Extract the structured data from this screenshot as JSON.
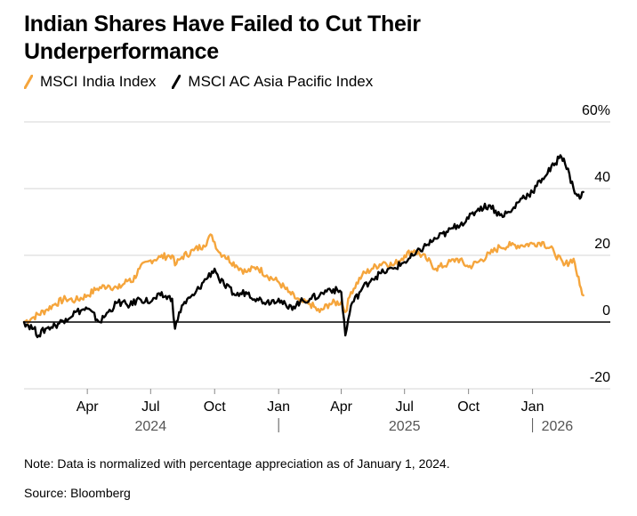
{
  "title": "Indian Shares Have Failed to Cut Their Underperformance",
  "note": "Note: Data is normalized with percentage appreciation as of January 1, 2024.",
  "source": "Source: Bloomberg",
  "colors": {
    "india": "#f5a53c",
    "asia_pacific": "#000000",
    "grid": "#d6d6d6",
    "zero_line": "#000000"
  },
  "legend": [
    {
      "label": "MSCI India Index",
      "color": "#f5a53c"
    },
    {
      "label": "MSCI AC Asia Pacific Index",
      "color": "#000000"
    }
  ],
  "chart_data": {
    "type": "line",
    "title": "Indian Shares Have Failed to Cut Their Underperformance",
    "xlabel": "",
    "ylabel": "",
    "xlim": [
      "2024-01-01",
      "2026-03-18"
    ],
    "ylim": [
      -20,
      60
    ],
    "grid": true,
    "legend_position": "top-left",
    "y_ticks": [
      {
        "value": 60,
        "label": "60%"
      },
      {
        "value": 40,
        "label": "40"
      },
      {
        "value": 20,
        "label": "20"
      },
      {
        "value": 0,
        "label": "0"
      },
      {
        "value": -20,
        "label": "-20"
      }
    ],
    "x_ticks": [
      {
        "date": "2024-04-01",
        "label": "Apr"
      },
      {
        "date": "2024-07-01",
        "label": "Jul"
      },
      {
        "date": "2024-10-01",
        "label": "Oct"
      },
      {
        "date": "2025-01-01",
        "label": "Jan"
      },
      {
        "date": "2025-04-01",
        "label": "Apr"
      },
      {
        "date": "2025-07-01",
        "label": "Jul"
      },
      {
        "date": "2025-10-01",
        "label": "Oct"
      },
      {
        "date": "2026-01-01",
        "label": "Jan"
      }
    ],
    "year_labels": [
      {
        "label": "2024",
        "date": "2024-07-01",
        "separator": false
      },
      {
        "label": "2025",
        "date": "2025-07-01",
        "separator": true,
        "separator_date": "2025-01-01"
      },
      {
        "label": "2026",
        "date": "2026-01-15",
        "separator": true,
        "separator_date": "2026-01-01"
      }
    ],
    "series": [
      {
        "name": "MSCI India Index",
        "color": "#f5a53c",
        "x": [
          "2024-01-01",
          "2024-01-15",
          "2024-02-01",
          "2024-02-15",
          "2024-03-01",
          "2024-03-15",
          "2024-04-01",
          "2024-04-15",
          "2024-05-01",
          "2024-05-15",
          "2024-06-01",
          "2024-06-04",
          "2024-06-15",
          "2024-07-01",
          "2024-07-15",
          "2024-08-01",
          "2024-08-05",
          "2024-08-15",
          "2024-09-01",
          "2024-09-15",
          "2024-09-27",
          "2024-10-07",
          "2024-10-15",
          "2024-11-01",
          "2024-11-15",
          "2024-12-01",
          "2024-12-15",
          "2025-01-01",
          "2025-01-15",
          "2025-02-01",
          "2025-02-15",
          "2025-03-01",
          "2025-03-15",
          "2025-04-01",
          "2025-04-07",
          "2025-04-15",
          "2025-05-01",
          "2025-05-15",
          "2025-06-01",
          "2025-06-15",
          "2025-07-01",
          "2025-07-15",
          "2025-08-01",
          "2025-08-15",
          "2025-09-01",
          "2025-09-15",
          "2025-10-01",
          "2025-10-15",
          "2025-11-01",
          "2025-11-15",
          "2025-12-01",
          "2025-12-15",
          "2026-01-01",
          "2026-01-15",
          "2026-02-01",
          "2026-02-15",
          "2026-03-01",
          "2026-03-10",
          "2026-03-15"
        ],
        "y": [
          0,
          1.5,
          3.5,
          5.5,
          7,
          6.5,
          8,
          10,
          11,
          10,
          13,
          12,
          16,
          18.5,
          19.5,
          20,
          17,
          19.5,
          21.5,
          23,
          26,
          21,
          20,
          17,
          15,
          16.5,
          14,
          12,
          9,
          6,
          5.5,
          3,
          5.5,
          6,
          3,
          9,
          14,
          16,
          18,
          17,
          20,
          21.5,
          19,
          16,
          17.5,
          19,
          16.5,
          18,
          20.5,
          22.5,
          23,
          23,
          23.5,
          24,
          21,
          17,
          19,
          11,
          8
        ]
      },
      {
        "name": "MSCI AC Asia Pacific Index",
        "color": "#000000",
        "x": [
          "2024-01-01",
          "2024-01-15",
          "2024-01-22",
          "2024-02-01",
          "2024-02-15",
          "2024-03-01",
          "2024-03-15",
          "2024-04-01",
          "2024-04-19",
          "2024-05-01",
          "2024-05-15",
          "2024-06-01",
          "2024-06-15",
          "2024-07-01",
          "2024-07-15",
          "2024-08-01",
          "2024-08-05",
          "2024-08-15",
          "2024-09-01",
          "2024-09-15",
          "2024-10-01",
          "2024-10-07",
          "2024-10-15",
          "2024-11-01",
          "2024-11-15",
          "2024-12-01",
          "2024-12-15",
          "2025-01-01",
          "2025-01-15",
          "2025-02-01",
          "2025-02-15",
          "2025-03-01",
          "2025-03-15",
          "2025-04-01",
          "2025-04-07",
          "2025-04-15",
          "2025-05-01",
          "2025-05-15",
          "2025-06-01",
          "2025-06-15",
          "2025-07-01",
          "2025-07-15",
          "2025-08-01",
          "2025-08-15",
          "2025-09-01",
          "2025-09-15",
          "2025-10-01",
          "2025-10-15",
          "2025-11-01",
          "2025-11-15",
          "2025-12-01",
          "2025-12-15",
          "2026-01-01",
          "2026-01-15",
          "2026-02-01",
          "2026-02-10",
          "2026-02-15",
          "2026-03-01",
          "2026-03-10",
          "2026-03-15"
        ],
        "y": [
          0,
          -2,
          -4,
          -2,
          -1,
          1,
          3,
          4,
          0,
          3,
          6,
          5,
          7,
          6,
          8,
          7,
          -2,
          5,
          8,
          12,
          16,
          13,
          11,
          8,
          9,
          7,
          6,
          7,
          4,
          6,
          7,
          8,
          10,
          9,
          -4,
          5,
          10,
          13,
          15,
          16,
          18,
          20,
          23,
          25,
          27,
          29,
          31,
          34,
          35,
          32,
          33,
          37,
          39,
          43,
          47,
          50,
          49,
          40,
          37,
          39
        ]
      }
    ]
  }
}
